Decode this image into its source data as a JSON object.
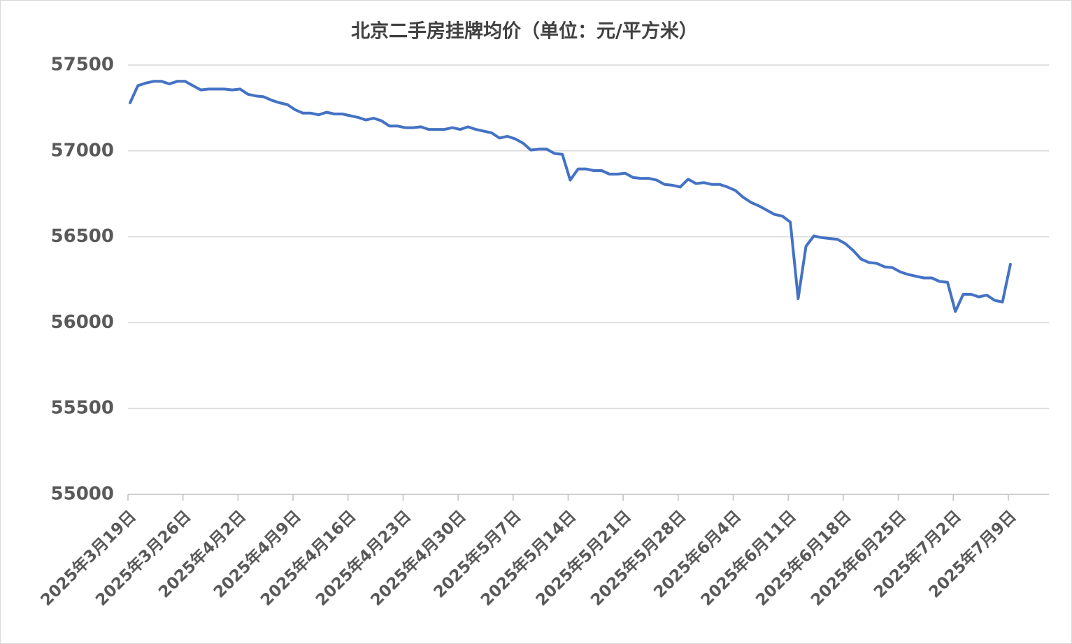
{
  "chart_data": {
    "type": "line",
    "title": "北京二手房挂牌均价（单位：元/平方米）",
    "categories": [
      "2025年3月19日",
      null,
      null,
      null,
      null,
      null,
      null,
      "2025年3月26日",
      null,
      null,
      null,
      null,
      null,
      null,
      "2025年4月2日",
      null,
      null,
      null,
      null,
      null,
      null,
      "2025年4月9日",
      null,
      null,
      null,
      null,
      null,
      null,
      "2025年4月16日",
      null,
      null,
      null,
      null,
      null,
      null,
      "2025年4月23日",
      null,
      null,
      null,
      null,
      null,
      null,
      "2025年4月30日",
      null,
      null,
      null,
      null,
      null,
      null,
      "2025年5月7日",
      null,
      null,
      null,
      null,
      null,
      null,
      "2025年5月14日",
      null,
      null,
      null,
      null,
      null,
      null,
      "2025年5月21日",
      null,
      null,
      null,
      null,
      null,
      null,
      "2025年5月28日",
      null,
      null,
      null,
      null,
      null,
      null,
      "2025年6月4日",
      null,
      null,
      null,
      null,
      null,
      null,
      "2025年6月11日",
      null,
      null,
      null,
      null,
      null,
      null,
      "2025年6月18日",
      null,
      null,
      null,
      null,
      null,
      null,
      "2025年6月25日",
      null,
      null,
      null,
      null,
      null,
      null,
      "2025年7月2日",
      null,
      null,
      null,
      null,
      null,
      null,
      "2025年7月9日"
    ],
    "values": [
      57280,
      57380,
      57395,
      57405,
      57405,
      57390,
      57405,
      57405,
      57380,
      57355,
      57360,
      57360,
      57360,
      57355,
      57360,
      57330,
      57320,
      57315,
      57295,
      57280,
      57270,
      57240,
      57220,
      57220,
      57210,
      57225,
      57215,
      57215,
      57205,
      57195,
      57180,
      57190,
      57175,
      57145,
      57145,
      57135,
      57135,
      57140,
      57125,
      57125,
      57125,
      57135,
      57125,
      57140,
      57125,
      57115,
      57105,
      57075,
      57085,
      57070,
      57045,
      57005,
      57010,
      57010,
      56985,
      56980,
      56830,
      56895,
      56895,
      56885,
      56885,
      56865,
      56865,
      56870,
      56845,
      56840,
      56840,
      56830,
      56805,
      56800,
      56790,
      56835,
      56810,
      56815,
      56805,
      56805,
      56790,
      56770,
      56730,
      56700,
      56680,
      56655,
      56630,
      56620,
      56585,
      56140,
      56445,
      56505,
      56495,
      56490,
      56485,
      56460,
      56420,
      56370,
      56350,
      56345,
      56325,
      56320,
      56295,
      56280,
      56270,
      56260,
      56260,
      56240,
      56235,
      56065,
      56165,
      56165,
      56150,
      56160,
      56130,
      56120,
      56340
    ],
    "color": "#4472c4",
    "ylim": [
      55000,
      57500
    ],
    "yticks": [
      55000,
      55500,
      56000,
      56500,
      57000,
      57500
    ],
    "grid": true
  }
}
